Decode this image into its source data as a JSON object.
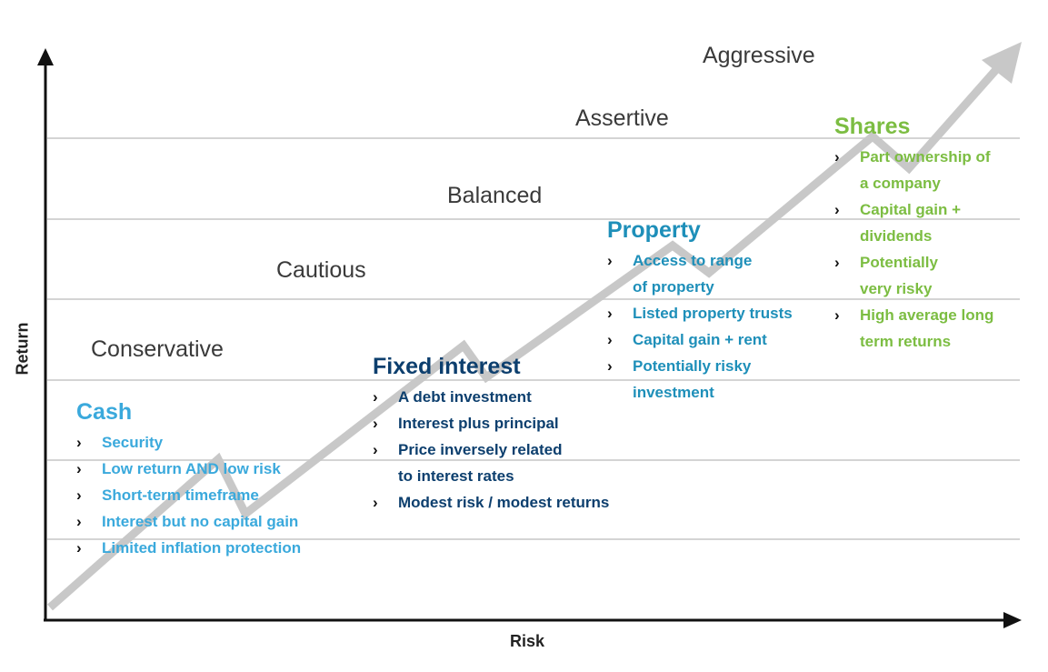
{
  "axes": {
    "y_label": "Return",
    "x_label": "Risk"
  },
  "profiles": [
    "Conservative",
    "Cautious",
    "Balanced",
    "Assertive",
    "Aggressive"
  ],
  "assets": {
    "cash": {
      "title": "Cash",
      "color": "#3aa9dc",
      "items": [
        "Security",
        "Low return AND low risk",
        "Short-term timeframe",
        "Interest but no capital gain",
        "Limited inflation protection"
      ]
    },
    "fixed_interest": {
      "title": "Fixed interest",
      "color": "#0d3f6e",
      "items": [
        "A debt investment",
        "Interest plus principal",
        "Price inversely related\nto interest rates",
        "Modest risk / modest returns"
      ]
    },
    "property": {
      "title": "Property",
      "color": "#1e8fb9",
      "items": [
        "Access to range\nof property",
        "Listed property trusts",
        "Capital gain + rent",
        "Potentially risky\ninvestment"
      ]
    },
    "shares": {
      "title": "Shares",
      "color": "#7cbd42",
      "items": [
        "Part ownership of\na company",
        "Capital gain +\ndividends",
        "Potentially\nvery risky",
        "High average long\nterm returns"
      ]
    }
  },
  "colors": {
    "axis": "#111111",
    "grid": "#d4d4d4",
    "trend_arrow": "#c8c8c8",
    "profile_text": "#3a3a3a"
  },
  "bullet_glyph": "›"
}
